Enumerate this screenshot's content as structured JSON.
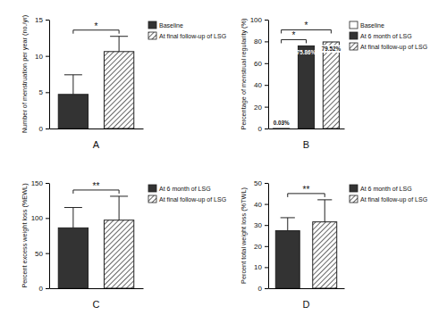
{
  "chart_data": [
    {
      "type": "bar",
      "title": "A",
      "ylabel": "Number of menstruation per year (no./yr)",
      "categories": [
        null
      ],
      "series": [
        {
          "name": "Baseline",
          "color": "#333333",
          "values": [
            4.7
          ],
          "error": [
            2.7
          ]
        },
        {
          "name": "At final follow-up of LSG",
          "color": "#ffffff",
          "marker": "hatch",
          "values": [
            10.6
          ],
          "error": [
            2.1
          ]
        }
      ],
      "ylim": [
        0,
        15
      ],
      "yticks": [
        0,
        5,
        10,
        15
      ],
      "legend": "right",
      "tick_labels": "y",
      "annotations": [
        {
          "text": "*",
          "series": [
            0,
            1
          ]
        }
      ]
    },
    {
      "type": "bar",
      "title": "B",
      "ylabel": "Percentage of menstrual regularity (%)",
      "categories": [
        null
      ],
      "series": [
        {
          "name": "Baseline",
          "color": "#ffffff",
          "values": [
            0.03
          ],
          "value_labels": [
            "0.03%"
          ]
        },
        {
          "name": "At 6 month of LSG",
          "color": "#333333",
          "values": [
            75.86
          ],
          "value_labels": [
            "75.86%"
          ]
        },
        {
          "name": "At final follow-up of LSG",
          "color": "#ffffff",
          "marker": "hatch",
          "values": [
            79.52
          ],
          "value_labels": [
            "79.52%"
          ]
        }
      ],
      "ylim": [
        0,
        100
      ],
      "yticks": [
        0,
        20,
        40,
        60,
        80,
        100
      ],
      "legend": "right",
      "tick_labels": "y",
      "data_labels": true,
      "annotations": [
        {
          "text": "*",
          "series": [
            0,
            1
          ]
        },
        {
          "text": "*",
          "series": [
            0,
            2
          ]
        }
      ]
    },
    {
      "type": "bar",
      "title": "C",
      "ylabel": "Percent excess weight loss (%EWL)",
      "categories": [
        null
      ],
      "series": [
        {
          "name": "At 6 month of LSG",
          "color": "#333333",
          "values": [
            86
          ],
          "error": [
            29
          ]
        },
        {
          "name": "At final follow-up of LSG",
          "color": "#ffffff",
          "marker": "hatch",
          "values": [
            97
          ],
          "error": [
            34
          ]
        }
      ],
      "ylim": [
        0,
        150
      ],
      "yticks": [
        0,
        50,
        100,
        150
      ],
      "legend": "right",
      "tick_labels": "y",
      "annotations": [
        {
          "text": "**",
          "series": [
            0,
            1
          ]
        }
      ]
    },
    {
      "type": "bar",
      "title": "D",
      "ylabel": "Percent total weight loss (%TWL)",
      "categories": [
        null
      ],
      "series": [
        {
          "name": "At 6 month of LSG",
          "color": "#333333",
          "values": [
            27.3
          ],
          "error": [
            6.2
          ]
        },
        {
          "name": "At final follow-up of LSG",
          "color": "#ffffff",
          "marker": "hatch",
          "values": [
            31.5
          ],
          "error": [
            10.5
          ]
        }
      ],
      "ylim": [
        0,
        50
      ],
      "yticks": [
        0,
        10,
        20,
        30,
        40,
        50
      ],
      "legend": "right",
      "tick_labels": "y",
      "annotations": [
        {
          "text": "**",
          "series": [
            0,
            1
          ]
        }
      ]
    }
  ]
}
